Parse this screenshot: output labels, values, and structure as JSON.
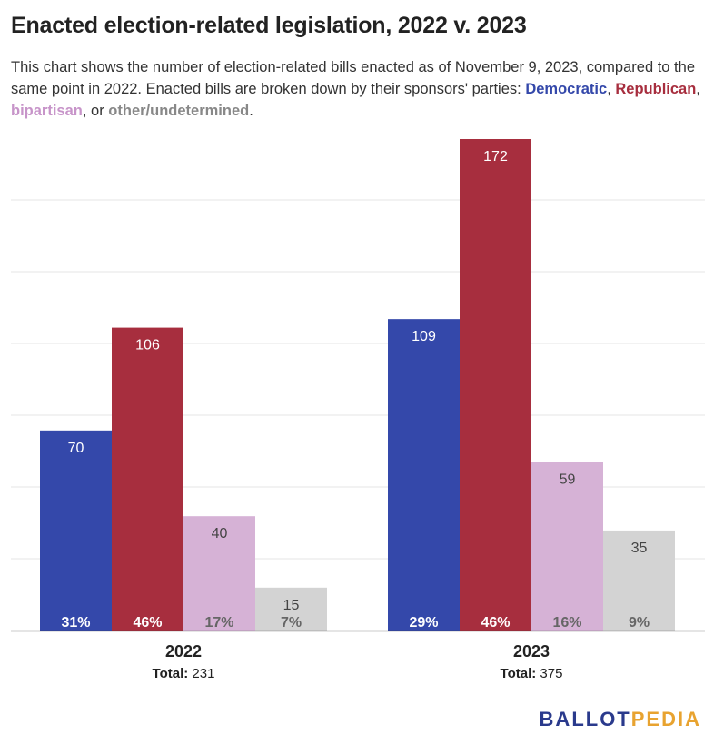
{
  "title": "Enacted election-related legislation, 2022 v. 2023",
  "subtitle": {
    "line_text": "This chart shows the number of election-related bills enacted as of November 9, 2023, compared to the same point in 2022. Enacted bills are broken down by their sponsors' parties: ",
    "democratic": "Democratic",
    "sep1": ", ",
    "republican": "Republican",
    "sep2": ", ",
    "bipartisan": "bipartisan",
    "sep3": ", or ",
    "other": "other/undetermined",
    "end": "."
  },
  "colors": {
    "democratic": "#3448aa",
    "republican": "#a72e3e",
    "bipartisan": "#d6b2d6",
    "other": "#d3d3d3"
  },
  "logo": {
    "part1": "BALLOT",
    "part2": "PEDIA"
  },
  "chart_data": {
    "type": "bar",
    "categories": [
      "2022",
      "2023"
    ],
    "totals": [
      {
        "label": "Total:",
        "value": "231"
      },
      {
        "label": "Total:",
        "value": "375"
      }
    ],
    "series": [
      {
        "name": "Democratic",
        "color_key": "democratic",
        "values": [
          70,
          109
        ],
        "percents": [
          "31%",
          "29%"
        ]
      },
      {
        "name": "Republican",
        "color_key": "republican",
        "values": [
          106,
          172
        ],
        "percents": [
          "46%",
          "46%"
        ]
      },
      {
        "name": "bipartisan",
        "color_key": "bipartisan",
        "values": [
          40,
          59
        ],
        "percents": [
          "17%",
          "16%"
        ]
      },
      {
        "name": "other/undetermined",
        "color_key": "other",
        "values": [
          15,
          35
        ],
        "percents": [
          "7%",
          "9%"
        ]
      }
    ],
    "ylim": [
      0,
      172
    ],
    "grid": true,
    "legend": "in subtitle"
  }
}
